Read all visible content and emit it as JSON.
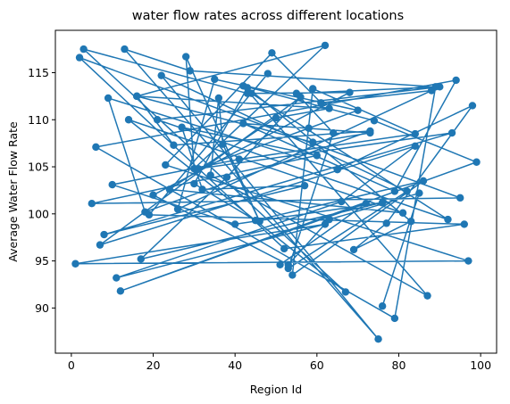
{
  "chart_data": {
    "type": "line",
    "title": "water flow rates across different locations",
    "xlabel": "Region Id",
    "ylabel": "Average Water Flow Rate",
    "xlim": [
      -3.9,
      103.9
    ],
    "ylim": [
      85.2,
      119.5
    ],
    "xticks": [
      0,
      20,
      40,
      60,
      80,
      100
    ],
    "yticks": [
      90,
      95,
      100,
      105,
      110,
      115
    ],
    "grid": false,
    "line_color": "#1f77b4",
    "marker": "circle",
    "series": [
      {
        "x": [
          51,
          72,
          12,
          99,
          74,
          42,
          87,
          34,
          36,
          37,
          46,
          28,
          30,
          62,
          16,
          25,
          73,
          18,
          9,
          65,
          98,
          77,
          69,
          83,
          43,
          30,
          45,
          86,
          54,
          59,
          84,
          41,
          10,
          40,
          76,
          17,
          38,
          56,
          7,
          84,
          66,
          11,
          62,
          1,
          97,
          23,
          49,
          61,
          88,
          26,
          35,
          70,
          58,
          31,
          93,
          8,
          57,
          32,
          27,
          60,
          5,
          95,
          2,
          52,
          96,
          19,
          48,
          44,
          92,
          21,
          90,
          55,
          64,
          53,
          82,
          22,
          75,
          13,
          29,
          89,
          79,
          6,
          94,
          79,
          42,
          73,
          59,
          16,
          63,
          50,
          24,
          81,
          14,
          67,
          3,
          43,
          68,
          20,
          53,
          63,
          85,
          76
        ],
        "y": [
          94.6,
          101.1,
          91.8,
          105.5,
          109.9,
          113.6,
          91.3,
          104.1,
          112.3,
          107.4,
          99.2,
          116.7,
          104.8,
          117.9,
          112.5,
          107.3,
          108.8,
          100.2,
          112.3,
          104.7,
          111.5,
          99.0,
          96.2,
          99.2,
          113.4,
          103.2,
          99.3,
          103.5,
          93.5,
          113.3,
          108.5,
          105.8,
          103.1,
          98.9,
          101.2,
          95.2,
          103.9,
          112.4,
          96.7,
          107.2,
          101.3,
          93.2,
          98.9,
          94.7,
          95.0,
          105.2,
          117.1,
          111.8,
          113.1,
          100.5,
          114.3,
          111.0,
          109.1,
          104.8,
          108.6,
          97.8,
          103.0,
          102.6,
          109.2,
          106.2,
          101.1,
          101.7,
          116.6,
          96.3,
          98.9,
          99.9,
          114.9,
          112.8,
          99.4,
          110.0,
          113.5,
          112.8,
          108.6,
          94.2,
          102.4,
          114.7,
          86.7,
          117.5,
          115.2,
          113.5,
          88.9,
          107.1,
          114.2,
          102.4,
          109.6,
          108.6,
          107.6,
          112.5,
          111.2,
          110.2,
          102.6,
          100.1,
          110.0,
          91.7,
          117.5,
          112.8,
          112.9,
          102.0,
          94.6,
          99.4,
          102.2,
          90.2
        ]
      }
    ]
  }
}
